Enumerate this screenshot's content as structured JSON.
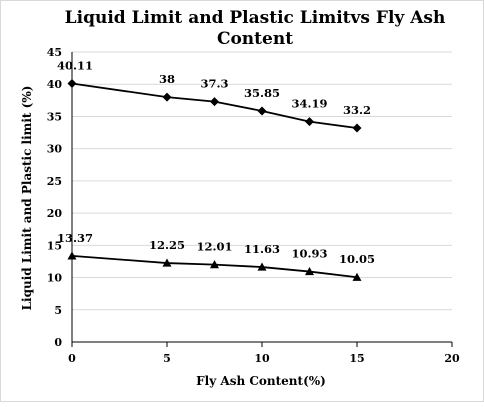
{
  "chart_data": {
    "type": "line",
    "title_lines": [
      "Liquid Limit and Plastic Limitvs Fly Ash",
      "Content"
    ],
    "xlabel": "Fly Ash Content(%)",
    "ylabel": "Liquid Limit and Plastic limit (%)",
    "xlim": [
      0,
      20
    ],
    "ylim": [
      0,
      45
    ],
    "x_ticks": [
      0,
      5,
      10,
      15,
      20
    ],
    "y_ticks": [
      0,
      5,
      10,
      15,
      20,
      25,
      30,
      35,
      40,
      45
    ],
    "x_tick_labels": [
      "0",
      "5",
      "10",
      "15",
      "20"
    ],
    "y_tick_labels": [
      "0",
      "5",
      "10",
      "15",
      "20",
      "25",
      "30",
      "35",
      "40",
      "45"
    ],
    "grid": "horizontal",
    "series": [
      {
        "marker": "diamond",
        "color": "#000000",
        "x": [
          0,
          5,
          7.5,
          10,
          12.5,
          15
        ],
        "y": [
          40.11,
          38,
          37.3,
          35.85,
          34.19,
          33.2
        ],
        "labels": [
          "40.11",
          "38",
          "37.3",
          "35.85",
          "34.19",
          "33.2"
        ]
      },
      {
        "marker": "triangle",
        "color": "#000000",
        "x": [
          0,
          5,
          7.5,
          10,
          12.5,
          15
        ],
        "y": [
          13.37,
          12.25,
          12.01,
          11.63,
          10.93,
          10.05
        ],
        "labels": [
          "13.37",
          "12.25",
          "12.01",
          "11.63",
          "10.93",
          "10.05"
        ]
      }
    ]
  }
}
